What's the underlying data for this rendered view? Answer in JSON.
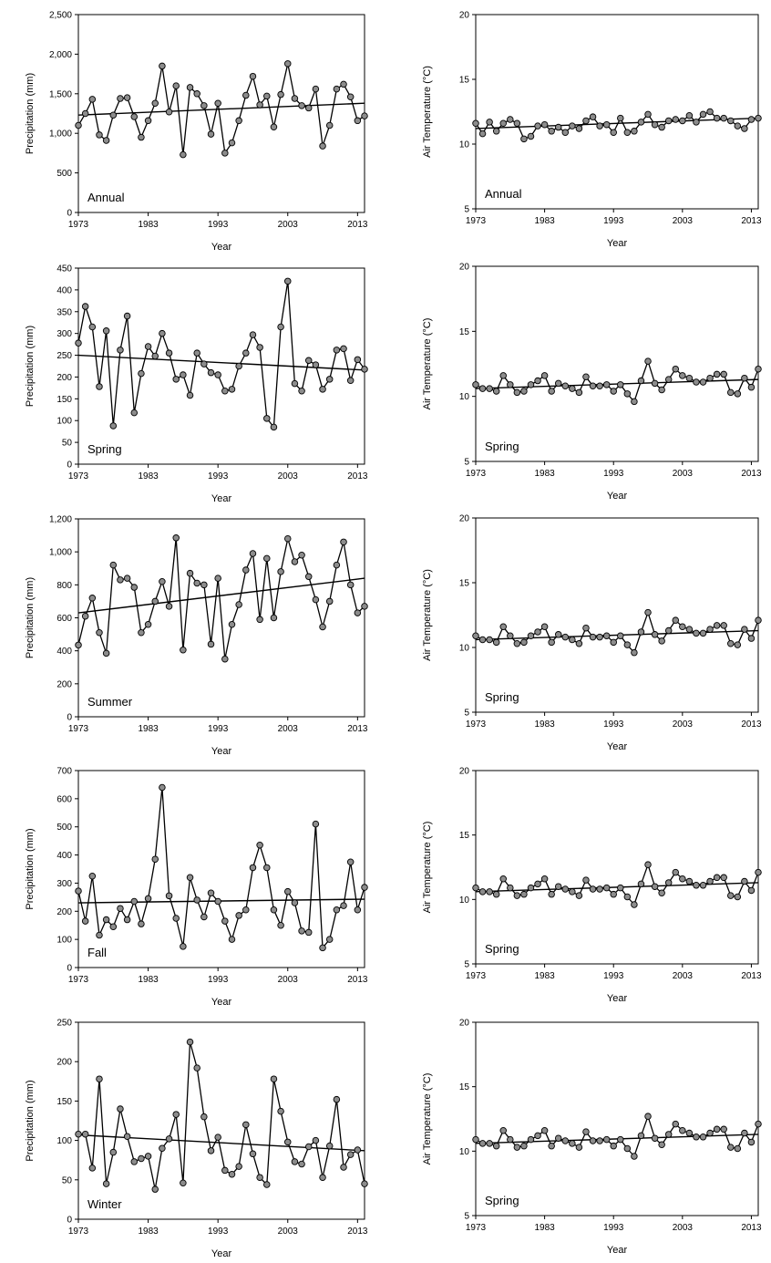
{
  "chart_data": [
    {
      "type": "line",
      "panel_label": "Annual",
      "xlabel": "Year",
      "ylabel": "Precipitation (mm)",
      "xlim": [
        1973,
        2014
      ],
      "ylim": [
        0,
        2500
      ],
      "xticks": [
        1973,
        1983,
        1993,
        2003,
        2013
      ],
      "xtick_labels": [
        "1973",
        "1983",
        "1993",
        "2003",
        "2013"
      ],
      "yticks": [
        0,
        500,
        1000,
        1500,
        2000,
        2500
      ],
      "ytick_labels": [
        "0",
        "500",
        "1,000",
        "1,500",
        "2,000",
        "2,500"
      ],
      "x": [
        1973,
        1974,
        1975,
        1976,
        1977,
        1978,
        1979,
        1980,
        1981,
        1982,
        1983,
        1984,
        1985,
        1986,
        1987,
        1988,
        1989,
        1990,
        1991,
        1992,
        1993,
        1994,
        1995,
        1996,
        1997,
        1998,
        1999,
        2000,
        2001,
        2002,
        2003,
        2004,
        2005,
        2006,
        2007,
        2008,
        2009,
        2010,
        2011,
        2012,
        2013,
        2014
      ],
      "values": [
        1100,
        1250,
        1430,
        980,
        910,
        1230,
        1440,
        1450,
        1210,
        950,
        1160,
        1380,
        1850,
        1270,
        1600,
        730,
        1580,
        1500,
        1350,
        990,
        1380,
        750,
        880,
        1160,
        1480,
        1720,
        1360,
        1470,
        1080,
        1490,
        1880,
        1440,
        1350,
        1320,
        1560,
        840,
        1100,
        1560,
        1620,
        1460,
        1160,
        1220
      ],
      "trend": [
        1230,
        1380
      ],
      "grid": false
    },
    {
      "type": "line",
      "panel_label": "Annual",
      "xlabel": "Year",
      "ylabel": "Air Temperature (°C)",
      "xlim": [
        1973,
        2014
      ],
      "ylim": [
        5,
        20
      ],
      "xticks": [
        1973,
        1983,
        1993,
        2003,
        2013
      ],
      "xtick_labels": [
        "1973",
        "1983",
        "1993",
        "2003",
        "2013"
      ],
      "yticks": [
        5,
        10,
        15,
        20
      ],
      "ytick_labels": [
        "5",
        "10",
        "15",
        "20"
      ],
      "x": [
        1973,
        1974,
        1975,
        1976,
        1977,
        1978,
        1979,
        1980,
        1981,
        1982,
        1983,
        1984,
        1985,
        1986,
        1987,
        1988,
        1989,
        1990,
        1991,
        1992,
        1993,
        1994,
        1995,
        1996,
        1997,
        1998,
        1999,
        2000,
        2001,
        2002,
        2003,
        2004,
        2005,
        2006,
        2007,
        2008,
        2009,
        2010,
        2011,
        2012,
        2013,
        2014
      ],
      "values": [
        11.6,
        10.8,
        11.7,
        11.0,
        11.6,
        11.9,
        11.6,
        10.4,
        10.6,
        11.4,
        11.5,
        11.0,
        11.3,
        10.9,
        11.4,
        11.2,
        11.8,
        12.1,
        11.4,
        11.5,
        10.9,
        12.0,
        10.9,
        11.0,
        11.7,
        12.3,
        11.5,
        11.3,
        11.8,
        11.9,
        11.8,
        12.2,
        11.7,
        12.3,
        12.5,
        12.0,
        12.0,
        11.8,
        11.4,
        11.2,
        11.9,
        12.0
      ],
      "trend": [
        11.2,
        12.0
      ],
      "grid": false
    },
    {
      "type": "line",
      "panel_label": "Spring",
      "xlabel": "Year",
      "ylabel": "Precipitation (mm)",
      "xlim": [
        1973,
        2014
      ],
      "ylim": [
        0,
        450
      ],
      "xticks": [
        1973,
        1983,
        1993,
        2003,
        2013
      ],
      "xtick_labels": [
        "1973",
        "1983",
        "1993",
        "2003",
        "2013"
      ],
      "yticks": [
        0,
        50,
        100,
        150,
        200,
        250,
        300,
        350,
        400,
        450
      ],
      "ytick_labels": [
        "0",
        "50",
        "100",
        "150",
        "200",
        "250",
        "300",
        "350",
        "400",
        "450"
      ],
      "x": [
        1973,
        1974,
        1975,
        1976,
        1977,
        1978,
        1979,
        1980,
        1981,
        1982,
        1983,
        1984,
        1985,
        1986,
        1987,
        1988,
        1989,
        1990,
        1991,
        1992,
        1993,
        1994,
        1995,
        1996,
        1997,
        1998,
        1999,
        2000,
        2001,
        2002,
        2003,
        2004,
        2005,
        2006,
        2007,
        2008,
        2009,
        2010,
        2011,
        2012,
        2013,
        2014
      ],
      "values": [
        278,
        362,
        315,
        178,
        306,
        88,
        262,
        340,
        118,
        208,
        270,
        248,
        300,
        255,
        195,
        205,
        158,
        255,
        230,
        210,
        205,
        168,
        172,
        225,
        255,
        297,
        268,
        105,
        85,
        315,
        420,
        185,
        168,
        238,
        228,
        172,
        195,
        262,
        265,
        192,
        240,
        218
      ],
      "trend": [
        250,
        216
      ],
      "grid": false
    },
    {
      "type": "line",
      "panel_label": "Spring",
      "xlabel": "Year",
      "ylabel": "Air Temperature (°C)",
      "xlim": [
        1973,
        2014
      ],
      "ylim": [
        5,
        20
      ],
      "xticks": [
        1973,
        1983,
        1993,
        2003,
        2013
      ],
      "xtick_labels": [
        "1973",
        "1983",
        "1993",
        "2003",
        "2013"
      ],
      "yticks": [
        5,
        10,
        15,
        20
      ],
      "ytick_labels": [
        "5",
        "10",
        "15",
        "20"
      ],
      "x": [
        1973,
        1974,
        1975,
        1976,
        1977,
        1978,
        1979,
        1980,
        1981,
        1982,
        1983,
        1984,
        1985,
        1986,
        1987,
        1988,
        1989,
        1990,
        1991,
        1992,
        1993,
        1994,
        1995,
        1996,
        1997,
        1998,
        1999,
        2000,
        2001,
        2002,
        2003,
        2004,
        2005,
        2006,
        2007,
        2008,
        2009,
        2010,
        2011,
        2012,
        2013,
        2014
      ],
      "values": [
        10.9,
        10.6,
        10.6,
        10.4,
        11.6,
        10.9,
        10.3,
        10.4,
        10.9,
        11.2,
        11.6,
        10.4,
        11.0,
        10.8,
        10.6,
        10.3,
        11.5,
        10.8,
        10.8,
        10.9,
        10.4,
        10.9,
        10.2,
        9.6,
        11.2,
        12.7,
        11.0,
        10.5,
        11.3,
        12.1,
        11.6,
        11.4,
        11.1,
        11.1,
        11.4,
        11.7,
        11.7,
        10.3,
        10.2,
        11.4,
        10.7,
        12.1
      ],
      "trend": [
        10.6,
        11.3
      ],
      "grid": false
    },
    {
      "type": "line",
      "panel_label": "Summer",
      "xlabel": "Year",
      "ylabel": "Precipitation (mm)",
      "xlim": [
        1973,
        2014
      ],
      "ylim": [
        0,
        1200
      ],
      "xticks": [
        1973,
        1983,
        1993,
        2003,
        2013
      ],
      "xtick_labels": [
        "1973",
        "1983",
        "1993",
        "2003",
        "2013"
      ],
      "yticks": [
        0,
        200,
        400,
        600,
        800,
        1000,
        1200
      ],
      "ytick_labels": [
        "0",
        "200",
        "400",
        "600",
        "800",
        "1,000",
        "1,200"
      ],
      "x": [
        1973,
        1974,
        1975,
        1976,
        1977,
        1978,
        1979,
        1980,
        1981,
        1982,
        1983,
        1984,
        1985,
        1986,
        1987,
        1988,
        1989,
        1990,
        1991,
        1992,
        1993,
        1994,
        1995,
        1996,
        1997,
        1998,
        1999,
        2000,
        2001,
        2002,
        2003,
        2004,
        2005,
        2006,
        2007,
        2008,
        2009,
        2010,
        2011,
        2012,
        2013,
        2014
      ],
      "values": [
        435,
        610,
        720,
        510,
        385,
        920,
        830,
        840,
        785,
        510,
        560,
        700,
        820,
        670,
        1085,
        405,
        870,
        810,
        800,
        440,
        840,
        350,
        560,
        680,
        890,
        990,
        590,
        960,
        600,
        880,
        1080,
        940,
        980,
        850,
        710,
        545,
        700,
        920,
        1060,
        800,
        630,
        670
      ],
      "trend": [
        630,
        840
      ],
      "grid": false
    },
    {
      "type": "line",
      "panel_label": "Spring",
      "xlabel": "Year",
      "ylabel": "Air Temperature (°C)",
      "xlim": [
        1973,
        2014
      ],
      "ylim": [
        5,
        20
      ],
      "xticks": [
        1973,
        1983,
        1993,
        2003,
        2013
      ],
      "xtick_labels": [
        "1973",
        "1983",
        "1993",
        "2003",
        "2013"
      ],
      "yticks": [
        5,
        10,
        15,
        20
      ],
      "ytick_labels": [
        "5",
        "10",
        "15",
        "20"
      ],
      "x": [
        1973,
        1974,
        1975,
        1976,
        1977,
        1978,
        1979,
        1980,
        1981,
        1982,
        1983,
        1984,
        1985,
        1986,
        1987,
        1988,
        1989,
        1990,
        1991,
        1992,
        1993,
        1994,
        1995,
        1996,
        1997,
        1998,
        1999,
        2000,
        2001,
        2002,
        2003,
        2004,
        2005,
        2006,
        2007,
        2008,
        2009,
        2010,
        2011,
        2012,
        2013,
        2014
      ],
      "values": [
        10.9,
        10.6,
        10.6,
        10.4,
        11.6,
        10.9,
        10.3,
        10.4,
        10.9,
        11.2,
        11.6,
        10.4,
        11.0,
        10.8,
        10.6,
        10.3,
        11.5,
        10.8,
        10.8,
        10.9,
        10.4,
        10.9,
        10.2,
        9.6,
        11.2,
        12.7,
        11.0,
        10.5,
        11.3,
        12.1,
        11.6,
        11.4,
        11.1,
        11.1,
        11.4,
        11.7,
        11.7,
        10.3,
        10.2,
        11.4,
        10.7,
        12.1
      ],
      "trend": [
        10.6,
        11.3
      ],
      "grid": false
    },
    {
      "type": "line",
      "panel_label": "Fall",
      "xlabel": "Year",
      "ylabel": "Precipitation (mm)",
      "xlim": [
        1973,
        2014
      ],
      "ylim": [
        0,
        700
      ],
      "xticks": [
        1973,
        1983,
        1993,
        2003,
        2013
      ],
      "xtick_labels": [
        "1973",
        "1983",
        "1993",
        "2003",
        "2013"
      ],
      "yticks": [
        0,
        100,
        200,
        300,
        400,
        500,
        600,
        700
      ],
      "ytick_labels": [
        "0",
        "100",
        "200",
        "300",
        "400",
        "500",
        "600",
        "700"
      ],
      "x": [
        1973,
        1974,
        1975,
        1976,
        1977,
        1978,
        1979,
        1980,
        1981,
        1982,
        1983,
        1984,
        1985,
        1986,
        1987,
        1988,
        1989,
        1990,
        1991,
        1992,
        1993,
        1994,
        1995,
        1996,
        1997,
        1998,
        1999,
        2000,
        2001,
        2002,
        2003,
        2004,
        2005,
        2006,
        2007,
        2008,
        2009,
        2010,
        2011,
        2012,
        2013,
        2014
      ],
      "values": [
        272,
        165,
        325,
        115,
        170,
        145,
        210,
        170,
        235,
        155,
        245,
        385,
        640,
        255,
        175,
        75,
        320,
        240,
        180,
        265,
        235,
        165,
        100,
        185,
        205,
        355,
        435,
        355,
        205,
        150,
        270,
        230,
        130,
        125,
        510,
        70,
        100,
        205,
        220,
        375,
        205,
        285
      ],
      "trend": [
        230,
        243
      ],
      "grid": false
    },
    {
      "type": "line",
      "panel_label": "Spring",
      "xlabel": "Year",
      "ylabel": "Air Temperature (°C)",
      "xlim": [
        1973,
        2014
      ],
      "ylim": [
        5,
        20
      ],
      "xticks": [
        1973,
        1983,
        1993,
        2003,
        2013
      ],
      "xtick_labels": [
        "1973",
        "1983",
        "1993",
        "2003",
        "2013"
      ],
      "yticks": [
        5,
        10,
        15,
        20
      ],
      "ytick_labels": [
        "5",
        "10",
        "15",
        "20"
      ],
      "x": [
        1973,
        1974,
        1975,
        1976,
        1977,
        1978,
        1979,
        1980,
        1981,
        1982,
        1983,
        1984,
        1985,
        1986,
        1987,
        1988,
        1989,
        1990,
        1991,
        1992,
        1993,
        1994,
        1995,
        1996,
        1997,
        1998,
        1999,
        2000,
        2001,
        2002,
        2003,
        2004,
        2005,
        2006,
        2007,
        2008,
        2009,
        2010,
        2011,
        2012,
        2013,
        2014
      ],
      "values": [
        10.9,
        10.6,
        10.6,
        10.4,
        11.6,
        10.9,
        10.3,
        10.4,
        10.9,
        11.2,
        11.6,
        10.4,
        11.0,
        10.8,
        10.6,
        10.3,
        11.5,
        10.8,
        10.8,
        10.9,
        10.4,
        10.9,
        10.2,
        9.6,
        11.2,
        12.7,
        11.0,
        10.5,
        11.3,
        12.1,
        11.6,
        11.4,
        11.1,
        11.1,
        11.4,
        11.7,
        11.7,
        10.3,
        10.2,
        11.4,
        10.7,
        12.1
      ],
      "trend": [
        10.6,
        11.3
      ],
      "grid": false
    },
    {
      "type": "line",
      "panel_label": "Winter",
      "xlabel": "Year",
      "ylabel": "Precipitation (mm)",
      "xlim": [
        1973,
        2014
      ],
      "ylim": [
        0,
        250
      ],
      "xticks": [
        1973,
        1983,
        1993,
        2003,
        2013
      ],
      "xtick_labels": [
        "1973",
        "1983",
        "1993",
        "2003",
        "2013"
      ],
      "yticks": [
        0,
        50,
        100,
        150,
        200,
        250
      ],
      "ytick_labels": [
        "0",
        "50",
        "100",
        "150",
        "200",
        "250"
      ],
      "x": [
        1973,
        1974,
        1975,
        1976,
        1977,
        1978,
        1979,
        1980,
        1981,
        1982,
        1983,
        1984,
        1985,
        1986,
        1987,
        1988,
        1989,
        1990,
        1991,
        1992,
        1993,
        1994,
        1995,
        1996,
        1997,
        1998,
        1999,
        2000,
        2001,
        2002,
        2003,
        2004,
        2005,
        2006,
        2007,
        2008,
        2009,
        2010,
        2011,
        2012,
        2013,
        2014
      ],
      "values": [
        108,
        108,
        65,
        178,
        45,
        85,
        140,
        105,
        73,
        77,
        80,
        38,
        90,
        102,
        133,
        46,
        225,
        192,
        130,
        87,
        104,
        62,
        57,
        67,
        120,
        83,
        53,
        44,
        178,
        137,
        98,
        73,
        70,
        92,
        100,
        53,
        93,
        152,
        66,
        82,
        88,
        45
      ],
      "trend": [
        107,
        87
      ],
      "grid": false
    },
    {
      "type": "line",
      "panel_label": "Spring",
      "xlabel": "Year",
      "ylabel": "Air Temperature (°C)",
      "xlim": [
        1973,
        2014
      ],
      "ylim": [
        5,
        20
      ],
      "xticks": [
        1973,
        1983,
        1993,
        2003,
        2013
      ],
      "xtick_labels": [
        "1973",
        "1983",
        "1993",
        "2003",
        "2013"
      ],
      "yticks": [
        5,
        10,
        15,
        20
      ],
      "ytick_labels": [
        "5",
        "10",
        "15",
        "20"
      ],
      "x": [
        1973,
        1974,
        1975,
        1976,
        1977,
        1978,
        1979,
        1980,
        1981,
        1982,
        1983,
        1984,
        1985,
        1986,
        1987,
        1988,
        1989,
        1990,
        1991,
        1992,
        1993,
        1994,
        1995,
        1996,
        1997,
        1998,
        1999,
        2000,
        2001,
        2002,
        2003,
        2004,
        2005,
        2006,
        2007,
        2008,
        2009,
        2010,
        2011,
        2012,
        2013,
        2014
      ],
      "values": [
        10.9,
        10.6,
        10.6,
        10.4,
        11.6,
        10.9,
        10.3,
        10.4,
        10.9,
        11.2,
        11.6,
        10.4,
        11.0,
        10.8,
        10.6,
        10.3,
        11.5,
        10.8,
        10.8,
        10.9,
        10.4,
        10.9,
        10.2,
        9.6,
        11.2,
        12.7,
        11.0,
        10.5,
        11.3,
        12.1,
        11.6,
        11.4,
        11.1,
        11.1,
        11.4,
        11.7,
        11.7,
        10.3,
        10.2,
        11.4,
        10.7,
        12.1
      ],
      "trend": [
        10.6,
        11.3
      ],
      "grid": false
    }
  ],
  "style": {
    "line_color": "#000000",
    "marker_fill": "#8c8c8c",
    "marker_stroke": "#000000",
    "frame_color": "#000000"
  }
}
